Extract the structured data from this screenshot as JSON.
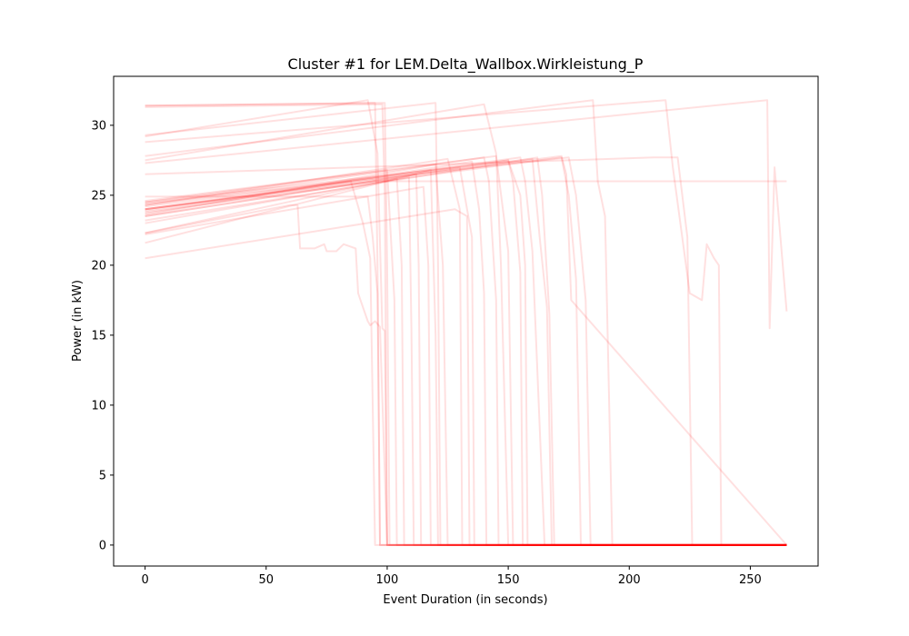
{
  "chart_data": {
    "type": "line",
    "title": "Cluster #1 for LEM.Delta_Wallbox.Wirkleistung_P",
    "xlabel": "Event Duration (in seconds)",
    "ylabel": "Power (in kW)",
    "xlim": [
      -13,
      278
    ],
    "ylim": [
      -1.5,
      33.5
    ],
    "xticks": [
      0,
      50,
      100,
      150,
      200,
      250
    ],
    "yticks": [
      0,
      5,
      10,
      15,
      20,
      25,
      30
    ],
    "grid": false,
    "legend": "none",
    "line_color": "#ff0000",
    "line_opacity": 0.12,
    "series": [
      {
        "x": [
          0,
          95,
          96,
          97,
          265
        ],
        "y": [
          31.4,
          31.6,
          20.0,
          0,
          0
        ]
      },
      {
        "x": [
          0,
          99,
          100,
          101,
          265
        ],
        "y": [
          31.4,
          31.6,
          20.0,
          0,
          0
        ]
      },
      {
        "x": [
          0,
          98,
          99,
          100,
          265
        ],
        "y": [
          31.3,
          31.5,
          25.0,
          0,
          0
        ]
      },
      {
        "x": [
          0,
          92,
          96,
          98,
          99,
          100,
          265
        ],
        "y": [
          29.2,
          31.8,
          28.0,
          15.5,
          15.3,
          0,
          0
        ]
      },
      {
        "x": [
          0,
          120,
          121,
          122,
          265
        ],
        "y": [
          29.3,
          31.6,
          20.0,
          0,
          0
        ]
      },
      {
        "x": [
          0,
          140,
          145,
          147,
          150,
          265
        ],
        "y": [
          27.5,
          31.5,
          28.0,
          20.0,
          0,
          0
        ]
      },
      {
        "x": [
          0,
          185,
          187,
          190,
          193,
          265
        ],
        "y": [
          27.8,
          31.8,
          26.0,
          23.5,
          0,
          0
        ]
      },
      {
        "x": [
          0,
          215,
          218,
          225,
          230,
          232,
          235,
          237,
          238,
          265
        ],
        "y": [
          28.8,
          31.8,
          27.0,
          18.0,
          17.5,
          21.5,
          20.5,
          20.0,
          0,
          0
        ]
      },
      {
        "x": [
          0,
          257,
          258,
          260,
          265
        ],
        "y": [
          27.3,
          31.8,
          15.5,
          27.0,
          16.7
        ]
      },
      {
        "x": [
          0,
          210,
          220,
          224,
          226,
          265
        ],
        "y": [
          26.5,
          27.7,
          27.7,
          22.0,
          0,
          0
        ]
      },
      {
        "x": [
          0,
          172,
          175,
          178,
          180,
          265
        ],
        "y": [
          23.8,
          27.7,
          25.0,
          19.0,
          0,
          0
        ]
      },
      {
        "x": [
          0,
          160,
          163,
          166,
          168,
          265
        ],
        "y": [
          24.5,
          27.6,
          22.0,
          17.0,
          0,
          0
        ]
      },
      {
        "x": [
          0,
          150,
          155,
          157,
          158,
          265
        ],
        "y": [
          24.2,
          27.5,
          25.0,
          20.0,
          0,
          0
        ]
      },
      {
        "x": [
          0,
          130,
          135,
          136,
          265
        ],
        "y": [
          24.0,
          27.0,
          22.0,
          0,
          0
        ]
      },
      {
        "x": [
          0,
          112,
          113,
          114,
          265
        ],
        "y": [
          23.5,
          26.5,
          20.0,
          0,
          0
        ]
      },
      {
        "x": [
          0,
          109,
          110,
          111,
          265
        ],
        "y": [
          23.0,
          26.3,
          15.5,
          0,
          0
        ]
      },
      {
        "x": [
          0,
          104,
          106,
          107,
          265
        ],
        "y": [
          22.3,
          26.2,
          20.0,
          0,
          0
        ]
      },
      {
        "x": [
          0,
          125,
          130,
          131,
          265
        ],
        "y": [
          24.3,
          27.6,
          24.0,
          0,
          0
        ]
      },
      {
        "x": [
          0,
          145,
          150,
          152,
          265
        ],
        "y": [
          24.6,
          27.8,
          21.0,
          0,
          0
        ]
      },
      {
        "x": [
          0,
          175,
          178,
          182,
          184,
          265
        ],
        "y": [
          24.4,
          27.7,
          25.0,
          17.5,
          0,
          0
        ]
      },
      {
        "x": [
          0,
          155,
          157,
          160,
          165,
          265
        ],
        "y": [
          24.0,
          27.7,
          26.0,
          21.0,
          0,
          0
        ]
      },
      {
        "x": [
          0,
          162,
          164,
          167,
          169,
          265
        ],
        "y": [
          23.2,
          27.7,
          25.0,
          16.5,
          0,
          0
        ]
      },
      {
        "x": [
          0,
          92,
          94,
          96,
          97,
          265
        ],
        "y": [
          24.9,
          24.9,
          22.0,
          18.0,
          0,
          0
        ]
      },
      {
        "x": [
          0,
          115,
          117,
          118,
          265
        ],
        "y": [
          22.2,
          25.6,
          20.0,
          0,
          0
        ]
      },
      {
        "x": [
          0,
          135,
          138,
          140,
          141,
          265
        ],
        "y": [
          23.7,
          27.4,
          24.0,
          18.0,
          0,
          0
        ]
      },
      {
        "x": [
          0,
          140,
          142,
          145,
          146,
          265
        ],
        "y": [
          24.3,
          27.7,
          26.0,
          17.5,
          0,
          0
        ]
      },
      {
        "x": [
          0,
          120,
          123,
          125,
          265
        ],
        "y": [
          23.6,
          27.2,
          20.0,
          0,
          0
        ]
      },
      {
        "x": [
          0,
          60,
          63,
          64,
          70,
          74,
          75,
          79,
          82,
          87,
          88,
          89,
          92,
          93,
          95,
          97,
          100,
          265
        ],
        "y": [
          22.3,
          24.3,
          24.3,
          21.2,
          21.2,
          21.5,
          21.0,
          21.0,
          21.5,
          21.2,
          18.0,
          17.5,
          16.0,
          15.7,
          16.0,
          15.6,
          0,
          0
        ]
      },
      {
        "x": [
          0,
          128,
          133,
          134,
          265
        ],
        "y": [
          20.5,
          24.0,
          23.5,
          0,
          0
        ]
      },
      {
        "x": [
          0,
          85,
          90,
          93,
          95,
          265
        ],
        "y": [
          23.9,
          26.0,
          23.0,
          20.5,
          0,
          0
        ]
      },
      {
        "x": [
          0,
          100,
          103,
          104,
          265
        ],
        "y": [
          24.5,
          26.8,
          17.5,
          0,
          0
        ]
      },
      {
        "x": [
          0,
          150,
          152,
          155,
          156,
          265
        ],
        "y": [
          23.5,
          27.5,
          26.0,
          19.5,
          0,
          0
        ]
      },
      {
        "x": [
          0,
          95,
          265
        ],
        "y": [
          24.0,
          26.0,
          26.0
        ]
      },
      {
        "x": [
          0,
          172,
          174,
          176,
          265
        ],
        "y": [
          24.0,
          27.8,
          26.5,
          17.5,
          0
        ]
      },
      {
        "x": [
          0,
          118,
          120,
          121,
          265
        ],
        "y": [
          21.6,
          26.8,
          15.0,
          0,
          0
        ]
      }
    ]
  }
}
